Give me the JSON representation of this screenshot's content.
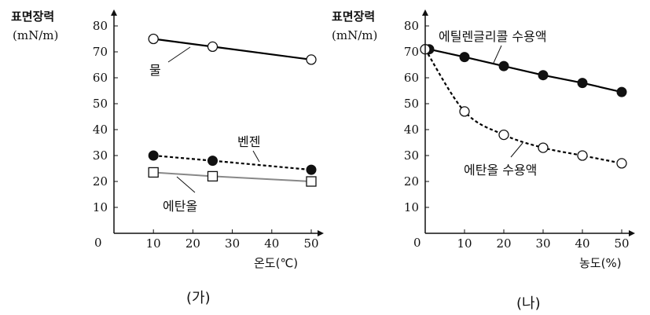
{
  "chart_data": [
    {
      "id": "ga",
      "type": "line",
      "caption": "(가)",
      "ylabel": "표면장력",
      "yunit": "(mN/m)",
      "xlabel": "온도(℃)",
      "origin_label": "0",
      "xlim": [
        0,
        50
      ],
      "ylim": [
        0,
        80
      ],
      "xticks": [
        10,
        20,
        30,
        40,
        50
      ],
      "yticks": [
        10,
        20,
        30,
        40,
        50,
        60,
        70,
        80
      ],
      "series": [
        {
          "name": "물",
          "x": [
            10,
            25,
            50
          ],
          "y": [
            75,
            72,
            67
          ],
          "marker": "open-circle",
          "line": "solid",
          "color": "#000000"
        },
        {
          "name": "벤젠",
          "x": [
            10,
            25,
            50
          ],
          "y": [
            30,
            28,
            24.5
          ],
          "marker": "filled-circle",
          "line": "dashed",
          "color": "#000000"
        },
        {
          "name": "에탄올",
          "x": [
            10,
            25,
            50
          ],
          "y": [
            23.5,
            22,
            20
          ],
          "marker": "open-square",
          "line": "solid",
          "color": "#888888"
        }
      ]
    },
    {
      "id": "na",
      "type": "line",
      "caption": "(나)",
      "ylabel": "표면장력",
      "yunit": "(mN/m)",
      "xlabel": "농도(%)",
      "origin_label": "0",
      "xlim": [
        0,
        50
      ],
      "ylim": [
        0,
        80
      ],
      "xticks": [
        10,
        20,
        30,
        40,
        50
      ],
      "yticks": [
        10,
        20,
        30,
        40,
        50,
        60,
        70,
        80
      ],
      "series": [
        {
          "name": "에틸렌글리콜 수용액",
          "x": [
            1,
            10,
            20,
            30,
            40,
            50
          ],
          "y": [
            71,
            68,
            64.5,
            61,
            58,
            54.5
          ],
          "marker": "filled-circle",
          "line": "solid",
          "color": "#000000"
        },
        {
          "name": "에탄올 수용액",
          "x": [
            0,
            10,
            20,
            30,
            40,
            50
          ],
          "y": [
            71,
            47,
            38,
            33,
            30,
            27
          ],
          "marker": "open-circle",
          "line": "dashed",
          "color": "#000000"
        }
      ]
    }
  ]
}
